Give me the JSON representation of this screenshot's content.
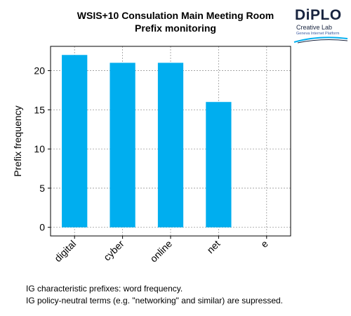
{
  "chart_data": {
    "type": "bar",
    "title": "WSIS+10 Consulation Main Meeting Room",
    "subtitle": "Prefix monitoring",
    "xlabel": "",
    "ylabel": "Prefix frequency",
    "categories": [
      "digital",
      "cyber",
      "online",
      "net",
      "e"
    ],
    "values": [
      22,
      21,
      21,
      16,
      0
    ],
    "ylim": [
      -1.1,
      23.1
    ],
    "yticks": [
      0,
      5,
      10,
      15,
      20
    ],
    "grid": true,
    "bar_color": "#00aeef"
  },
  "logo": {
    "name": "DiPLO",
    "line1": "Creative Lab",
    "line2": "Geneva Internet Platform",
    "color": "#18243f",
    "accent": "#00aeef"
  },
  "captions": [
    "IG characteristic prefixes: word frequency.",
    "IG policy-neutral terms (e.g. \"networking\" and similar) are supressed."
  ]
}
